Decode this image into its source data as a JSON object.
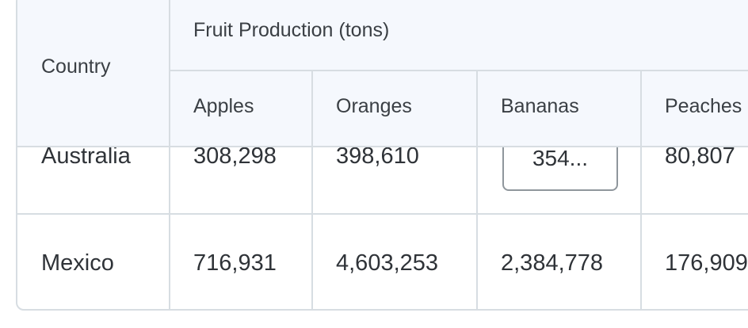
{
  "table": {
    "header": {
      "country": "Country",
      "group": "Fruit Production (tons)",
      "columns": [
        "Apples",
        "Oranges",
        "Bananas",
        "Peaches"
      ]
    },
    "rows": [
      {
        "country": "Australia",
        "apples": "308,298",
        "oranges": "398,610",
        "bananas": "354...",
        "peaches": "80,807"
      },
      {
        "country": "Mexico",
        "apples": "716,931",
        "oranges": "4,603,253",
        "bananas": "2,384,778",
        "peaches": "176,909"
      }
    ],
    "editing_cell": {
      "value": "354..."
    }
  }
}
